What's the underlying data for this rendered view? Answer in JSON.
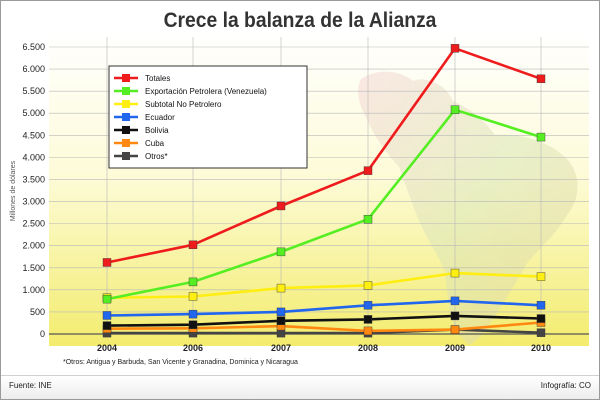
{
  "chart_data": {
    "type": "line",
    "title": "Crece la balanza de la Alianza",
    "ylabel": "Millones de dólares",
    "xlabel": "",
    "categories": [
      "2004",
      "2006",
      "2007",
      "2008",
      "2009",
      "2010"
    ],
    "ylim": [
      0,
      6500
    ],
    "yticks": [
      0,
      500,
      1000,
      1500,
      2000,
      2500,
      3000,
      3500,
      4000,
      4500,
      5000,
      5500,
      6000,
      6500
    ],
    "ytick_labels": [
      "0",
      "500",
      "1.000",
      "1.500",
      "2.000",
      "2.500",
      "3.000",
      "3.500",
      "4.000",
      "4.500",
      "5.000",
      "5.500",
      "6.000",
      "6.500"
    ],
    "grid": true,
    "legend_position": "top-left",
    "series": [
      {
        "name": "Totales",
        "color": "#ee1c1c",
        "values": [
          1620,
          2020,
          2900,
          3700,
          6470,
          5780
        ]
      },
      {
        "name": "Exportación Petrolera (Venezuela)",
        "color": "#55ee22",
        "values": [
          790,
          1180,
          1860,
          2600,
          5080,
          4460
        ]
      },
      {
        "name": "Subtotal No Petrolero",
        "color": "#ffee11",
        "values": [
          820,
          850,
          1040,
          1100,
          1380,
          1300
        ]
      },
      {
        "name": "Ecuador",
        "color": "#2266ee",
        "values": [
          420,
          450,
          500,
          650,
          750,
          650
        ]
      },
      {
        "name": "Bolivia",
        "color": "#111111",
        "values": [
          190,
          210,
          300,
          330,
          410,
          350
        ]
      },
      {
        "name": "Cuba",
        "color": "#ff8811",
        "values": [
          120,
          130,
          180,
          70,
          100,
          260
        ]
      },
      {
        "name": "Otros*",
        "color": "#444444",
        "values": [
          20,
          20,
          20,
          20,
          100,
          30
        ]
      }
    ],
    "footnote": "*Otros: Antigua y Barbuda, San Vicente y Granadina, Dominica y Nicaragua"
  },
  "footer": {
    "source": "Fuente: INE",
    "credit": "Infografía: CO"
  },
  "colors": {
    "background_top": "#ffffff",
    "background_bottom": "#f6f07a",
    "grid": "#b8b8b8"
  }
}
